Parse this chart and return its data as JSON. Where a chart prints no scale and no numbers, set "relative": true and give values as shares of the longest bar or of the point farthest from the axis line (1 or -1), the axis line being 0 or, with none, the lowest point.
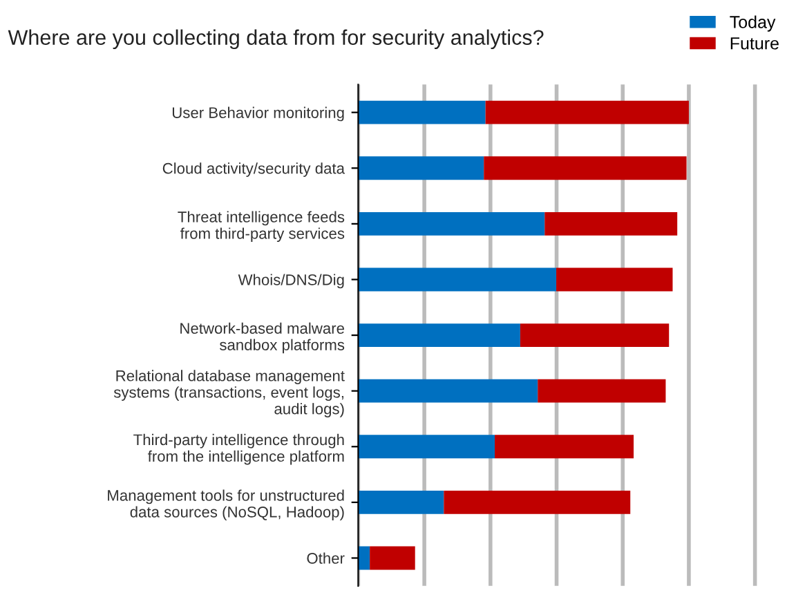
{
  "chart_data": {
    "type": "bar",
    "orientation": "horizontal",
    "stacked": true,
    "relative": true,
    "title": "Where are you collecting data from for security analytics?",
    "categories": [
      "User Behavior monitoring",
      "Cloud activity/security data",
      "Threat intelligence feeds\nfrom third-party services",
      "Whois/DNS/Dig",
      "Network-based malware\nsandbox platforms",
      "Relational database management\nsystems (transactions, event logs,\naudit logs)",
      "Third-party intelligence through\nfrom the intelligence platform",
      "Management tools for unstructured\ndata sources (NoSQL, Hadoop)",
      "Other"
    ],
    "series": [
      {
        "name": "Today",
        "color": "#0070c0",
        "values": [
          0.385,
          0.38,
          0.564,
          0.599,
          0.49,
          0.543,
          0.413,
          0.259,
          0.035
        ]
      },
      {
        "name": "Future",
        "color": "#c00000",
        "values": [
          0.615,
          0.613,
          0.401,
          0.352,
          0.45,
          0.387,
          0.42,
          0.564,
          0.137
        ]
      }
    ],
    "grid": "x",
    "legend": "top right"
  }
}
